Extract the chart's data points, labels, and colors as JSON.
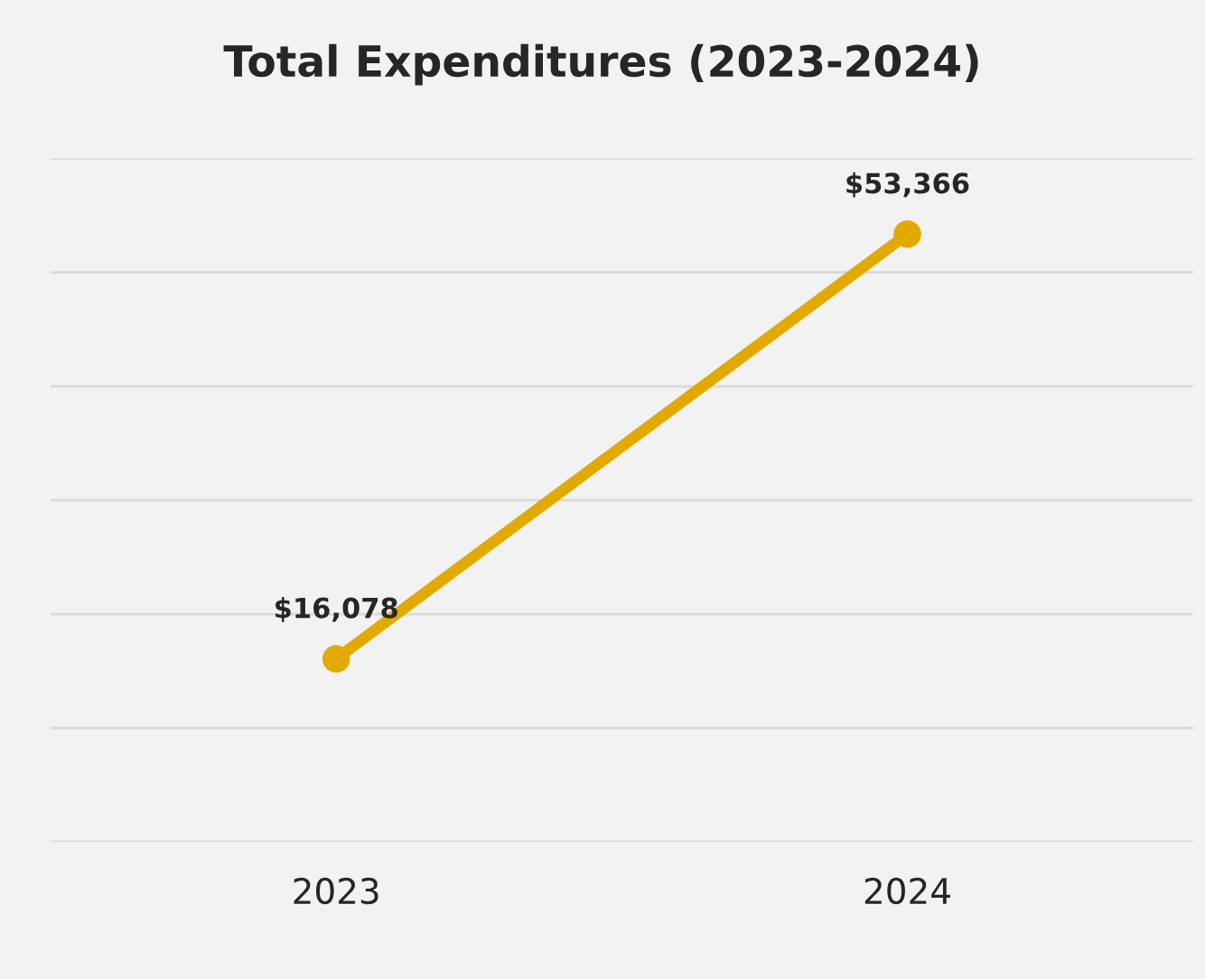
{
  "chart_data": {
    "type": "line",
    "title": "Total Expenditures (2023-2024)",
    "categories": [
      "2023",
      "2024"
    ],
    "series": [
      {
        "color": "#e2aa00",
        "values": [
          16078,
          53366
        ],
        "value_labels": [
          "$16,078",
          "$53,366"
        ]
      }
    ],
    "ylim": [
      0,
      60000
    ],
    "yticks": [
      {
        "value": 0,
        "label": null
      },
      {
        "value": 10000,
        "label": null
      },
      {
        "value": 20000,
        "label": null
      },
      {
        "value": 30000,
        "label": null
      },
      {
        "value": 40000,
        "label": null
      },
      {
        "value": 50000,
        "label": null
      },
      {
        "value": 60000,
        "label": null
      }
    ],
    "grid": "y",
    "tick_labels": "x",
    "marker": "circle",
    "line_style": "solid"
  }
}
